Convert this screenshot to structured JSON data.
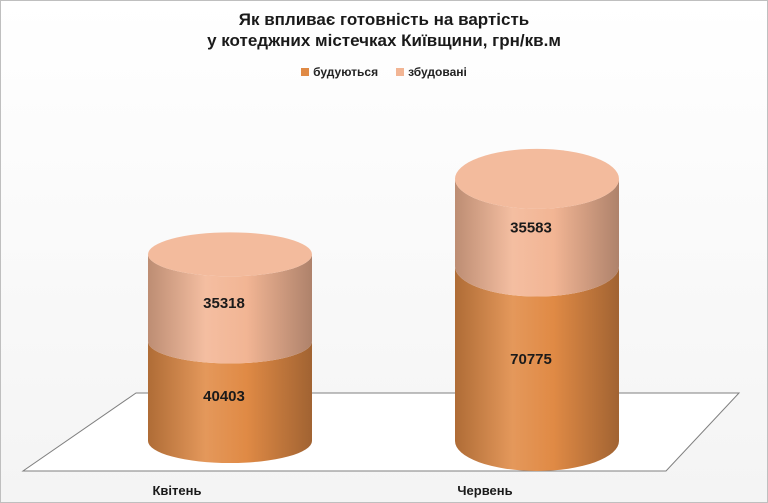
{
  "chart_data": {
    "type": "bar",
    "title_lines": [
      "Як впливає готовність на вартість",
      "у котеджних містечках Київщини, грн/кв.м"
    ],
    "categories": [
      "Квітень",
      "Червень"
    ],
    "series": [
      {
        "name": "будуються",
        "values": [
          40403,
          70775
        ],
        "color": "#E08A45"
      },
      {
        "name": "збудовані",
        "values": [
          35318,
          35583
        ],
        "color": "#F2B594"
      }
    ],
    "stacked": true,
    "legend": "top-center",
    "grid": false
  }
}
